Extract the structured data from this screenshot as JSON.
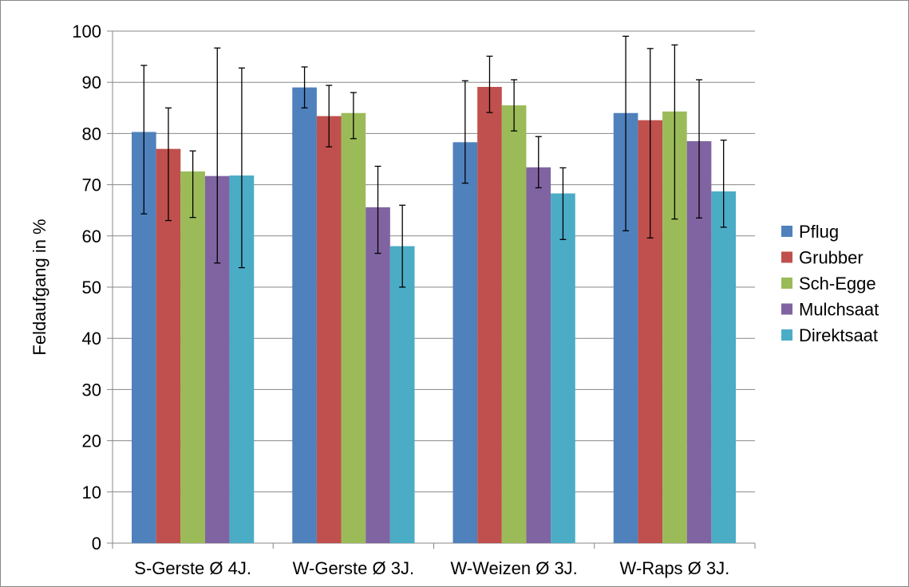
{
  "chart_data": {
    "type": "bar",
    "ylabel": "Feldaufgang in %",
    "xlabel": "",
    "ylim": [
      0,
      100
    ],
    "ytick_step": 10,
    "yticks": [
      "0",
      "10",
      "20",
      "30",
      "40",
      "50",
      "60",
      "70",
      "80",
      "90",
      "100"
    ],
    "grid": "horizontal",
    "legend_position": "right",
    "categories": [
      "S-Gerste Ø 4J.",
      "W-Gerste Ø 3J.",
      "W-Weizen Ø 3J.",
      "W-Raps Ø 3J."
    ],
    "series": [
      {
        "name": "Pflug",
        "color": "#4F81BD",
        "values": [
          80.3,
          89.0,
          78.3,
          84.0
        ],
        "err_low": [
          64.3,
          85.0,
          70.3,
          61.0
        ],
        "err_high": [
          93.3,
          93.0,
          90.3,
          99.0
        ]
      },
      {
        "name": "Grubber",
        "color": "#C0504D",
        "values": [
          77.0,
          83.4,
          89.1,
          82.6
        ],
        "err_low": [
          63.0,
          77.4,
          84.1,
          59.6
        ],
        "err_high": [
          85.0,
          89.4,
          95.1,
          96.6
        ]
      },
      {
        "name": "Sch-Egge",
        "color": "#9BBB59",
        "values": [
          72.6,
          84.0,
          85.5,
          84.3
        ],
        "err_low": [
          63.6,
          79.0,
          80.5,
          63.3
        ],
        "err_high": [
          76.6,
          88.0,
          90.5,
          97.3
        ]
      },
      {
        "name": "Mulchsaat",
        "color": "#8064A2",
        "values": [
          71.7,
          65.6,
          73.4,
          78.5
        ],
        "err_low": [
          54.7,
          56.6,
          69.4,
          63.5
        ],
        "err_high": [
          96.7,
          73.6,
          79.4,
          90.5
        ]
      },
      {
        "name": "Direktsaat",
        "color": "#4BACC6",
        "values": [
          71.8,
          58.0,
          68.3,
          68.7
        ],
        "err_low": [
          53.8,
          50.0,
          59.3,
          61.7
        ],
        "err_high": [
          92.8,
          66.0,
          73.3,
          78.7
        ]
      }
    ]
  }
}
